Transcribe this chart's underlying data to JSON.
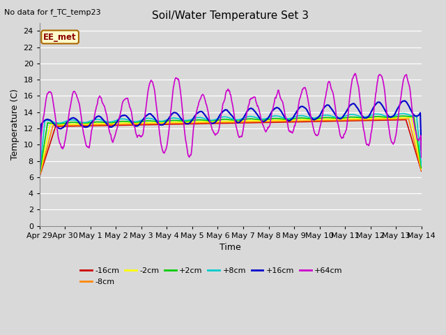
{
  "title": "Soil/Water Temperature Set 3",
  "subtitle": "No data for f_TC_temp23",
  "xlabel": "Time",
  "ylabel": "Temperature (C)",
  "ylim": [
    0,
    25
  ],
  "yticks": [
    0,
    2,
    4,
    6,
    8,
    10,
    12,
    14,
    16,
    18,
    20,
    22,
    24
  ],
  "background_color": "#d9d9d9",
  "plot_bg_color": "#d9d9d9",
  "legend_label": "EE_met",
  "series_colors": {
    "-16cm": "#cc0000",
    "-8cm": "#ff8800",
    "-2cm": "#ffff00",
    "+2cm": "#00cc00",
    "+8cm": "#00cccc",
    "+16cm": "#0000cc",
    "+64cm": "#cc00cc"
  },
  "x_tick_labels": [
    "Apr 29",
    "Apr 30",
    "May 1",
    "May 2",
    "May 3",
    "May 4",
    "May 5",
    "May 6",
    "May 7",
    "May 8",
    "May 9",
    "May 10",
    "May 11",
    "May 12",
    "May 13",
    "May 14"
  ],
  "x_tick_positions": [
    0,
    1,
    2,
    3,
    4,
    5,
    6,
    7,
    8,
    9,
    10,
    11,
    12,
    13,
    14,
    15
  ]
}
